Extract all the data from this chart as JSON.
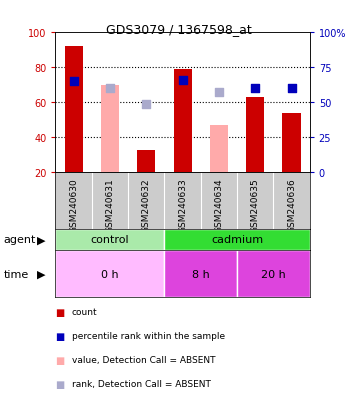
{
  "title": "GDS3079 / 1367598_at",
  "samples": [
    "GSM240630",
    "GSM240631",
    "GSM240632",
    "GSM240633",
    "GSM240634",
    "GSM240635",
    "GSM240636"
  ],
  "count_values": [
    92,
    null,
    33,
    79,
    null,
    63,
    54
  ],
  "count_absent_values": [
    null,
    70,
    null,
    null,
    47,
    null,
    null
  ],
  "percentile_values": [
    65,
    null,
    null,
    66,
    null,
    60,
    60
  ],
  "percentile_absent_values": [
    null,
    60,
    49,
    null,
    57,
    null,
    null
  ],
  "ylim_left": [
    20,
    100
  ],
  "ylim_right": [
    0,
    100
  ],
  "yticks_left": [
    20,
    40,
    60,
    80,
    100
  ],
  "yticks_right": [
    0,
    25,
    50,
    75,
    100
  ],
  "ytick_labels_right": [
    "0",
    "25",
    "50",
    "75",
    "100%"
  ],
  "agent_labels": [
    {
      "label": "control",
      "start": 0,
      "end": 3,
      "color": "#AAEAAA"
    },
    {
      "label": "cadmium",
      "start": 3,
      "end": 7,
      "color": "#33DD33"
    }
  ],
  "time_labels": [
    {
      "label": "0 h",
      "start": 0,
      "end": 3,
      "color": "#FFBBFF"
    },
    {
      "label": "8 h",
      "start": 3,
      "end": 5,
      "color": "#DD44DD"
    },
    {
      "label": "20 h",
      "start": 5,
      "end": 7,
      "color": "#DD44DD"
    }
  ],
  "color_count": "#CC0000",
  "color_count_absent": "#FFAAAA",
  "color_pct": "#0000BB",
  "color_pct_absent": "#AAAACC",
  "bar_width": 0.5,
  "dot_size": 28,
  "legend_items": [
    {
      "color": "#CC0000",
      "label": "count"
    },
    {
      "color": "#0000BB",
      "label": "percentile rank within the sample"
    },
    {
      "color": "#FFAAAA",
      "label": "value, Detection Call = ABSENT"
    },
    {
      "color": "#AAAACC",
      "label": "rank, Detection Call = ABSENT"
    }
  ],
  "left_tick_color": "#CC0000",
  "right_tick_color": "#0000BB",
  "bg_color_plot": "#FFFFFF",
  "bg_color_sample": "#CCCCCC",
  "gridline_color": "#000000",
  "gridline_style": "dotted"
}
